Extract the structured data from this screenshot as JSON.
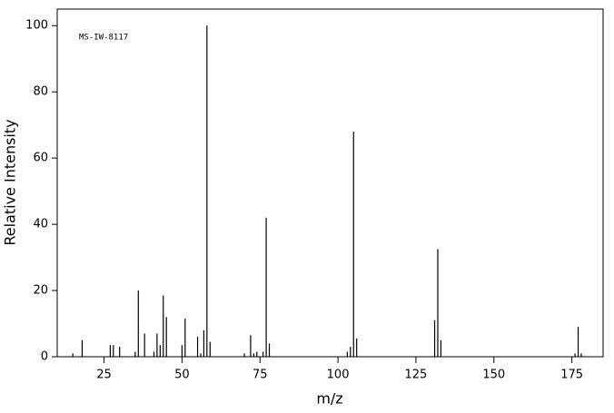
{
  "chart_data": {
    "type": "stem",
    "annotation": "MS-IW-8117",
    "xlabel": "m/z",
    "ylabel": "Relative Intensity",
    "x": [
      15,
      18,
      27,
      28,
      30,
      35,
      36,
      38,
      41,
      42,
      43,
      44,
      45,
      50,
      51,
      55,
      56,
      57,
      58,
      59,
      70,
      72,
      73,
      74,
      76,
      77,
      78,
      103,
      104,
      105,
      106,
      131,
      132,
      133,
      176,
      177,
      178
    ],
    "values": [
      1,
      5,
      3.5,
      3.5,
      3,
      1.5,
      20,
      7,
      1.5,
      7,
      3.5,
      18.5,
      12,
      3.5,
      11.5,
      6,
      1,
      8,
      100,
      4.5,
      1,
      6.5,
      1,
      1.5,
      1.5,
      42,
      4,
      1.5,
      3,
      68,
      5.5,
      11,
      32.5,
      5,
      1,
      9,
      1
    ],
    "color": "#000000",
    "xlim": [
      10,
      185
    ],
    "ylim": [
      0,
      105
    ],
    "xticks": [
      25,
      50,
      75,
      100,
      125,
      150,
      175
    ],
    "yticks": [
      0,
      20,
      40,
      60,
      80,
      100
    ]
  }
}
